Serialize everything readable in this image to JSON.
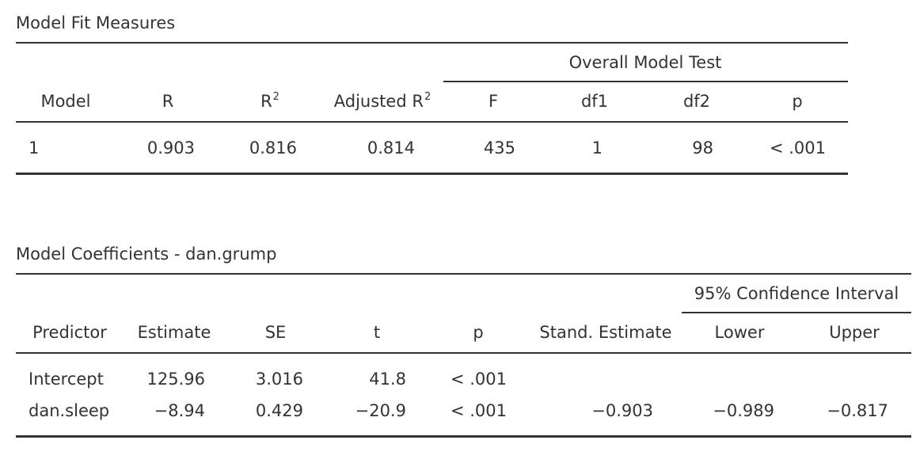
{
  "fit": {
    "title": "Model Fit Measures",
    "group_header": "Overall Model Test",
    "headers": {
      "model": "Model",
      "r": "R",
      "r2_base": "R",
      "adj_r2_base": "Adjusted R",
      "sup": "2",
      "f": "F",
      "df1": "df1",
      "df2": "df2",
      "p": "p"
    },
    "row": {
      "model": "1",
      "r": "0.903",
      "r2": "0.816",
      "adj_r2": "0.814",
      "f": "435",
      "df1": "1",
      "df2": "98",
      "p": "< .001"
    }
  },
  "coef": {
    "title": "Model Coefficients - dan.grump",
    "group_header": "95% Confidence Interval",
    "headers": {
      "predictor": "Predictor",
      "estimate": "Estimate",
      "se": "SE",
      "t": "t",
      "p": "p",
      "stand": "Stand. Estimate",
      "lower": "Lower",
      "upper": "Upper"
    },
    "rows": [
      {
        "predictor": "Intercept",
        "estimate": "125.96",
        "se": "3.016",
        "t": "41.8",
        "p": "< .001",
        "stand": "",
        "lower": "",
        "upper": ""
      },
      {
        "predictor": "dan.sleep",
        "estimate": "−8.94",
        "se": "0.429",
        "t": "−20.9",
        "p": "< .001",
        "stand": "−0.903",
        "lower": "−0.989",
        "upper": "−0.817"
      }
    ]
  }
}
